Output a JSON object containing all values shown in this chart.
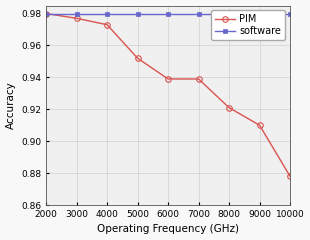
{
  "pim_x": [
    2000,
    3000,
    4000,
    5000,
    6000,
    7000,
    8000,
    9000,
    10000
  ],
  "pim_y": [
    0.98,
    0.977,
    0.973,
    0.952,
    0.939,
    0.939,
    0.921,
    0.91,
    0.878
  ],
  "software_x": [
    2000,
    3000,
    4000,
    5000,
    6000,
    7000,
    8000,
    9000,
    10000
  ],
  "software_y": [
    0.98,
    0.98,
    0.98,
    0.98,
    0.98,
    0.98,
    0.98,
    0.98,
    0.98
  ],
  "pim_color": "#d9534f",
  "software_color": "#6666cc",
  "plot_bg_color": "#f0f0f0",
  "fig_bg_color": "#f8f8f8",
  "xlabel": "Operating Frequency (GHz)",
  "ylabel": "Accuracy",
  "xlim": [
    2000,
    10000
  ],
  "ylim": [
    0.86,
    0.985
  ],
  "xticks": [
    2000,
    3000,
    4000,
    5000,
    6000,
    7000,
    8000,
    9000,
    10000
  ],
  "yticks": [
    0.86,
    0.88,
    0.9,
    0.92,
    0.94,
    0.96,
    0.98
  ],
  "legend_pim": "PIM",
  "legend_software": "software",
  "pim_marker": "o",
  "software_marker": "s",
  "linewidth": 1.0,
  "pim_markersize": 4.0,
  "software_markersize": 3.5,
  "fontsize_label": 7.5,
  "fontsize_tick": 6.5,
  "fontsize_legend": 7.0
}
